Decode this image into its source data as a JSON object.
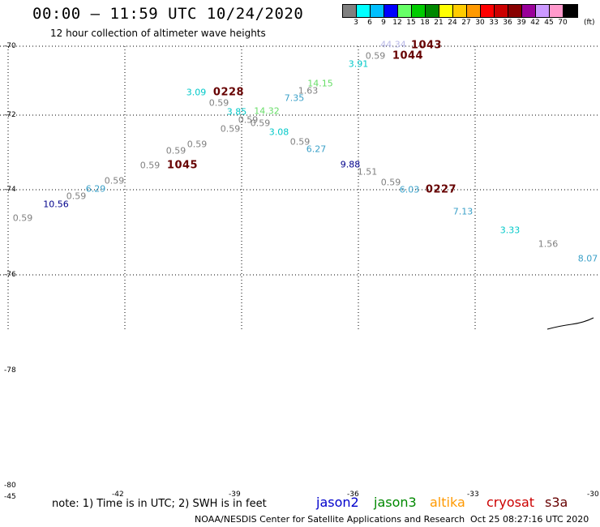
{
  "header": {
    "title": "00:00 – 11:59 UTC 10/24/2020",
    "subtitle": "12 hour collection of altimeter wave heights"
  },
  "legend": {
    "labels": [
      "3",
      "6",
      "9",
      "12",
      "15",
      "18",
      "21",
      "24",
      "27",
      "30",
      "33",
      "36",
      "39",
      "42",
      "45",
      "70"
    ],
    "unit": "(ft)",
    "colors": [
      "#808080",
      "#00ffff",
      "#00bfff",
      "#0000ff",
      "#66ff66",
      "#00cc00",
      "#008800",
      "#ffff00",
      "#ffcc00",
      "#ff9900",
      "#ff0000",
      "#cc0000",
      "#880000",
      "#990099",
      "#cc99ff",
      "#ff99cc",
      "#000000"
    ]
  },
  "latitudes": [
    "-70",
    "-72",
    "-74",
    "-76",
    "-78",
    "-80"
  ],
  "corner_label": "-45",
  "longitudes": [
    "-42",
    "-39",
    "-36",
    "-33",
    "-30"
  ],
  "observations": [
    {
      "text": "0.59",
      "color": "#808080"
    },
    {
      "text": "10.56",
      "color": "#00008b"
    },
    {
      "text": "0.59",
      "color": "#808080"
    },
    {
      "text": "6.29",
      "color": "#3aa0c8"
    },
    {
      "text": "0.59",
      "color": "#808080"
    },
    {
      "text": "0.59",
      "color": "#808080"
    },
    {
      "text": "1045",
      "color": "#660000"
    },
    {
      "text": "0.59",
      "color": "#808080"
    },
    {
      "text": "0.59",
      "color": "#808080"
    },
    {
      "text": "3.09",
      "color": "#00c8c8"
    },
    {
      "text": "0228",
      "color": "#660000"
    },
    {
      "text": "0.59",
      "color": "#808080"
    },
    {
      "text": "0.59",
      "color": "#808080"
    },
    {
      "text": "3.85",
      "color": "#00c8c8"
    },
    {
      "text": "14.32",
      "color": "#66dd66"
    },
    {
      "text": "0.59",
      "color": "#808080"
    },
    {
      "text": "0.59",
      "color": "#808080"
    },
    {
      "text": "3.08",
      "color": "#00c8c8"
    },
    {
      "text": "7.35",
      "color": "#3aa0c8"
    },
    {
      "text": "1.63",
      "color": "#808080"
    },
    {
      "text": "14.15",
      "color": "#66dd66"
    },
    {
      "text": "0.59",
      "color": "#808080"
    },
    {
      "text": "6.27",
      "color": "#3aa0c8"
    },
    {
      "text": "3.91",
      "color": "#00c8c8"
    },
    {
      "text": "0.59",
      "color": "#808080"
    },
    {
      "text": "44.34",
      "color": "#b8b8e8"
    },
    {
      "text": "1043",
      "color": "#660000"
    },
    {
      "text": "1044",
      "color": "#660000"
    },
    {
      "text": "9.88",
      "color": "#00008b"
    },
    {
      "text": "1.51",
      "color": "#808080"
    },
    {
      "text": "0.59",
      "color": "#808080"
    },
    {
      "text": "6.03",
      "color": "#3aa0c8"
    },
    {
      "text": "0227",
      "color": "#660000"
    },
    {
      "text": "7.13",
      "color": "#3aa0c8"
    },
    {
      "text": "3.33",
      "color": "#00c8c8"
    },
    {
      "text": "1.56",
      "color": "#808080"
    },
    {
      "text": "8.07",
      "color": "#3aa0c8"
    }
  ],
  "footer": {
    "note": "note: 1) Time is in UTC; 2) SWH is in feet",
    "satellites": [
      {
        "name": "jason2",
        "color": "#0000cc"
      },
      {
        "name": "jason3",
        "color": "#008800"
      },
      {
        "name": "altika",
        "color": "#ff9900"
      },
      {
        "name": "cryosat",
        "color": "#cc0000"
      },
      {
        "name": "s3a",
        "color": "#660000"
      }
    ],
    "credit": "NOAA/NESDIS Center for Satellite Applications and Research",
    "timestamp": "Oct 25 08:27:16 UTC 2020"
  }
}
